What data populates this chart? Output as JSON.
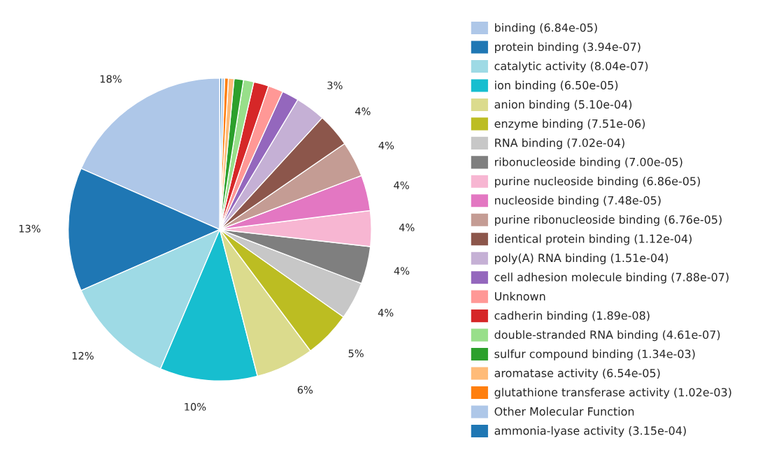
{
  "chart_data": {
    "type": "pie",
    "categories": [
      "binding (6.84e-05)",
      "protein binding (3.94e-07)",
      "catalytic activity (8.04e-07)",
      "ion binding (6.50e-05)",
      "anion binding (5.10e-04)",
      "enzyme binding (7.51e-06)",
      "RNA binding (7.02e-04)",
      "ribonucleoside binding (7.00e-05)",
      "purine nucleoside binding (6.86e-05)",
      "nucleoside binding (7.48e-05)",
      "purine ribonucleoside binding (6.76e-05)",
      "identical protein binding (1.12e-04)",
      "poly(A) RNA binding (1.51e-04)",
      "cell adhesion molecule binding (7.88e-07)",
      "Unknown",
      "cadherin binding (1.89e-08)",
      "double-stranded RNA binding (4.61e-07)",
      "sulfur compound binding (1.34e-03)",
      "aromatase activity (6.54e-05)",
      "glutathione transferase activity (1.02e-03)",
      "Other Molecular Function",
      "ammonia-lyase activity (3.15e-04)"
    ],
    "values": [
      18.4,
      13.2,
      12.0,
      10.4,
      6.2,
      5.0,
      4.0,
      4.0,
      3.8,
      3.8,
      3.8,
      3.6,
      3.2,
      1.8,
      1.6,
      1.6,
      1.1,
      1.0,
      0.6,
      0.4,
      0.3,
      0.2
    ],
    "value_labels": [
      "18%",
      "13%",
      "12%",
      "10%",
      "6%",
      "5%",
      "4%",
      "4%",
      "4%",
      "4%",
      "4%",
      "4%",
      "3%",
      null,
      null,
      null,
      null,
      null,
      null,
      null,
      null,
      null
    ],
    "colors": [
      "#aec7e8",
      "#1f77b4",
      "#9edae5",
      "#17becf",
      "#dbdb8d",
      "#bcbd22",
      "#c7c7c7",
      "#7f7f7f",
      "#f7b6d2",
      "#e377c2",
      "#c49c94",
      "#8c564b",
      "#c5b0d5",
      "#9467bd",
      "#ff9896",
      "#d62728",
      "#98df8a",
      "#2ca02c",
      "#ffbb78",
      "#ff7f0e",
      "#aec7e8",
      "#1f77b4"
    ],
    "legend": "right"
  }
}
